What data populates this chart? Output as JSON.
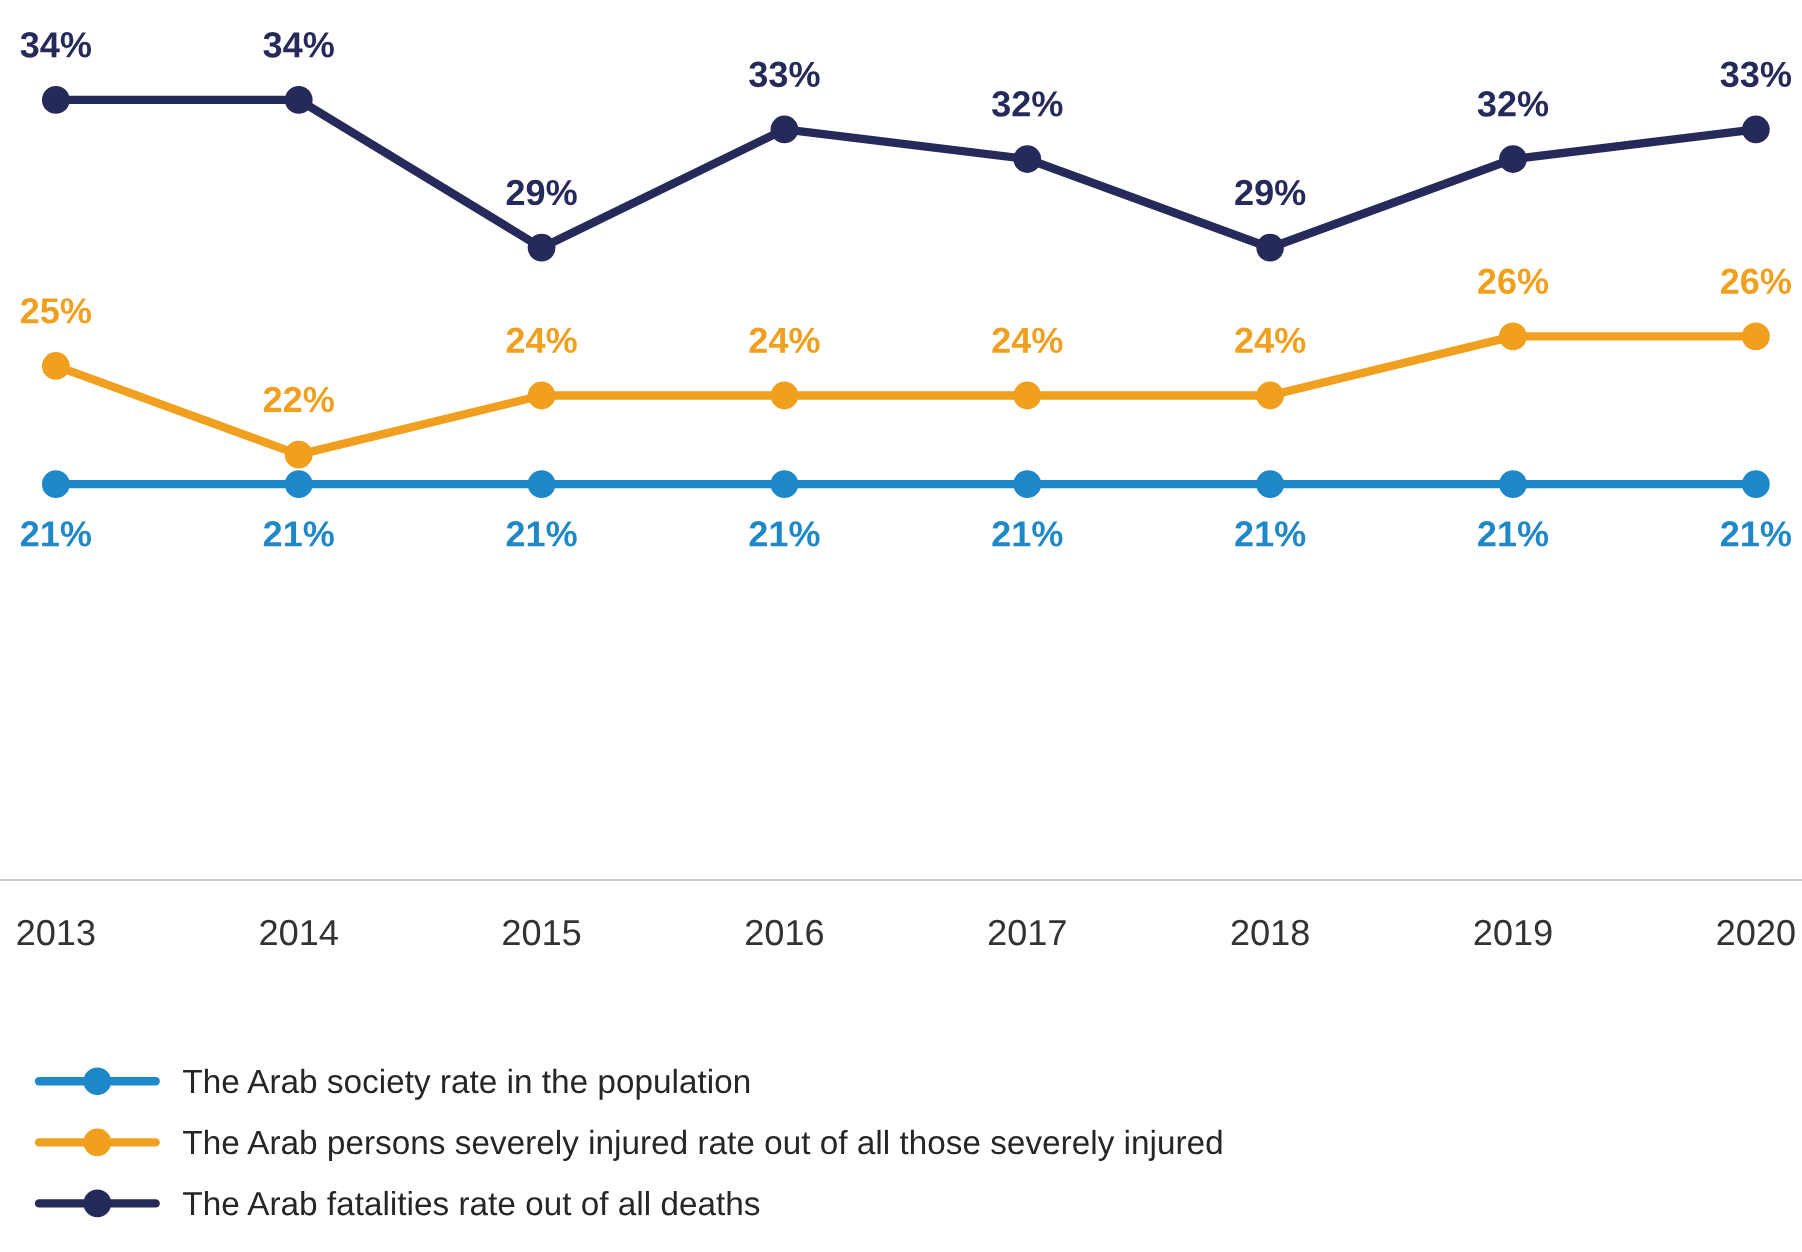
{
  "chart_data": {
    "type": "line",
    "categories": [
      "2013",
      "2014",
      "2015",
      "2016",
      "2017",
      "2018",
      "2019",
      "2020"
    ],
    "series": [
      {
        "name": "The Arab society rate in the population",
        "color": "#1e88c8",
        "values": [
          21,
          21,
          21,
          21,
          21,
          21,
          21,
          21
        ],
        "value_labels": [
          "21%",
          "21%",
          "21%",
          "21%",
          "21%",
          "21%",
          "21%",
          "21%"
        ]
      },
      {
        "name": "The Arab persons severely injured rate out of all those severely injured",
        "color": "#f0a01e",
        "values": [
          25,
          22,
          24,
          24,
          24,
          24,
          26,
          26
        ],
        "value_labels": [
          "25%",
          "22%",
          "24%",
          "24%",
          "24%",
          "24%",
          "26%",
          "26%"
        ]
      },
      {
        "name": "The Arab fatalities rate out of all deaths",
        "color": "#262a5a",
        "values": [
          34,
          34,
          29,
          33,
          32,
          29,
          32,
          33
        ],
        "value_labels": [
          "34%",
          "34%",
          "29%",
          "33%",
          "32%",
          "29%",
          "32%",
          "33%"
        ]
      }
    ],
    "tick_labels": "x",
    "grid": false,
    "legend": "bottom",
    "marker": "circle",
    "line_style": "solid"
  }
}
